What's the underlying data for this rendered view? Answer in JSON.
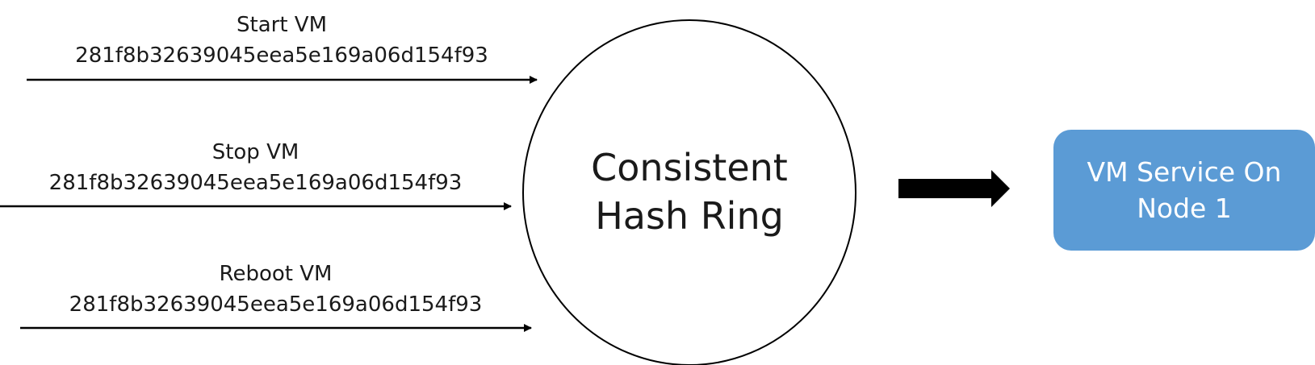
{
  "requests": [
    {
      "action": "Start VM",
      "id": "281f8b32639045eea5e169a06d154f93"
    },
    {
      "action": "Stop VM",
      "id": "281f8b32639045eea5e169a06d154f93"
    },
    {
      "action": "Reboot VM",
      "id": "281f8b32639045eea5e169a06d154f93"
    }
  ],
  "ring": {
    "line1": "Consistent",
    "line2": "Hash Ring"
  },
  "service": {
    "line1": "VM Service On",
    "line2": "Node 1"
  },
  "colors": {
    "service_fill": "#5b9bd5",
    "stroke": "#000000"
  }
}
